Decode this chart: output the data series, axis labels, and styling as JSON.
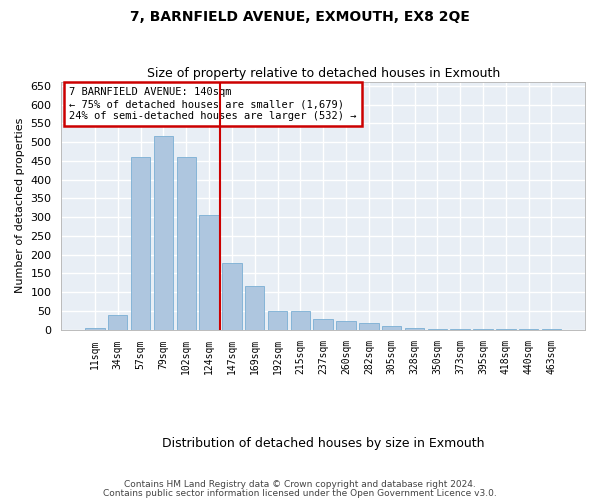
{
  "title": "7, BARNFIELD AVENUE, EXMOUTH, EX8 2QE",
  "subtitle": "Size of property relative to detached houses in Exmouth",
  "xlabel": "Distribution of detached houses by size in Exmouth",
  "ylabel": "Number of detached properties",
  "bar_labels": [
    "11sqm",
    "34sqm",
    "57sqm",
    "79sqm",
    "102sqm",
    "124sqm",
    "147sqm",
    "169sqm",
    "192sqm",
    "215sqm",
    "237sqm",
    "260sqm",
    "282sqm",
    "305sqm",
    "328sqm",
    "350sqm",
    "373sqm",
    "395sqm",
    "418sqm",
    "440sqm",
    "463sqm"
  ],
  "bar_values": [
    5,
    38,
    460,
    515,
    460,
    305,
    178,
    115,
    50,
    50,
    27,
    22,
    17,
    10,
    5,
    2,
    1,
    1,
    1,
    2,
    1
  ],
  "bar_color": "#aec6df",
  "bar_edge_color": "#7aafd4",
  "vline_x": 5.5,
  "vline_color": "#cc0000",
  "ylim": [
    0,
    660
  ],
  "yticks": [
    0,
    50,
    100,
    150,
    200,
    250,
    300,
    350,
    400,
    450,
    500,
    550,
    600,
    650
  ],
  "annotation_title": "7 BARNFIELD AVENUE: 140sqm",
  "annotation_line1": "← 75% of detached houses are smaller (1,679)",
  "annotation_line2": "24% of semi-detached houses are larger (532) →",
  "annotation_box_color": "#cc0000",
  "bg_color": "#e8eef5",
  "grid_color": "#ffffff",
  "footer_line1": "Contains HM Land Registry data © Crown copyright and database right 2024.",
  "footer_line2": "Contains public sector information licensed under the Open Government Licence v3.0."
}
